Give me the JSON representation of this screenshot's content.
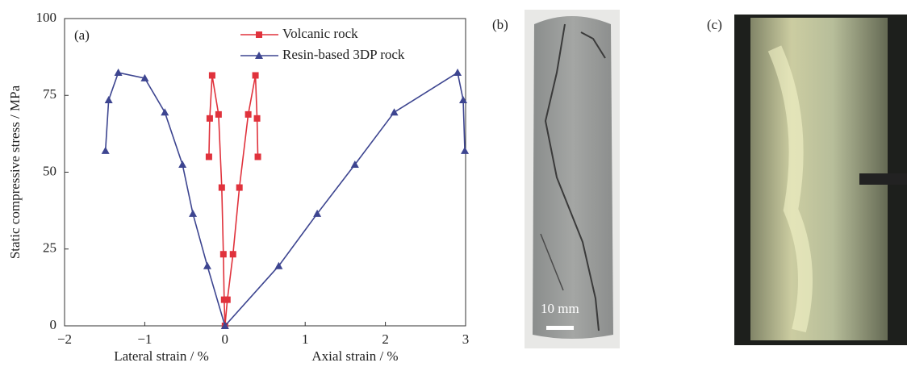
{
  "chart_data": {
    "type": "line",
    "annotation": "(a)",
    "ylabel": "Static compressive stress / MPa",
    "xlabels": [
      "Lateral strain / %",
      "Axial strain / %"
    ],
    "xlim": [
      -2,
      3
    ],
    "xticks": [
      {
        "value": -2,
        "label": "−2"
      },
      {
        "value": -1,
        "label": "−1"
      },
      0,
      1,
      2,
      3
    ],
    "ylim": [
      0,
      100
    ],
    "yticks": [
      0,
      25,
      50,
      75,
      100
    ],
    "series": [
      {
        "name": "Volcanic rock",
        "color": "#e0323c",
        "marker": "square",
        "x": [
          -0.2,
          -0.19,
          -0.16,
          -0.08,
          -0.04,
          -0.02,
          -0.01,
          0,
          0.03,
          0.1,
          0.18,
          0.29,
          0.38,
          0.4,
          0.41
        ],
        "values": [
          55,
          67.5,
          81.5,
          68.8,
          45,
          23.3,
          8.5,
          0,
          8.5,
          23.3,
          45,
          68.8,
          81.5,
          67.5,
          55
        ]
      },
      {
        "name": "Resin-based 3DP rock",
        "color": "#3d4590",
        "marker": "triangle",
        "x": [
          -1.49,
          -1.45,
          -1.33,
          -1.0,
          -0.75,
          -0.53,
          -0.4,
          -0.22,
          0,
          0.67,
          1.15,
          1.62,
          2.11,
          2.9,
          2.97,
          2.99
        ],
        "values": [
          57,
          73.5,
          82.4,
          80.6,
          69.5,
          52.5,
          36.5,
          19.5,
          0,
          19.5,
          36.5,
          52.5,
          69.5,
          82.4,
          73.5,
          57
        ]
      }
    ]
  },
  "photos": {
    "b": {
      "label": "(b)",
      "scale_bar": "10 mm"
    },
    "c": {
      "label": "(c)"
    }
  }
}
